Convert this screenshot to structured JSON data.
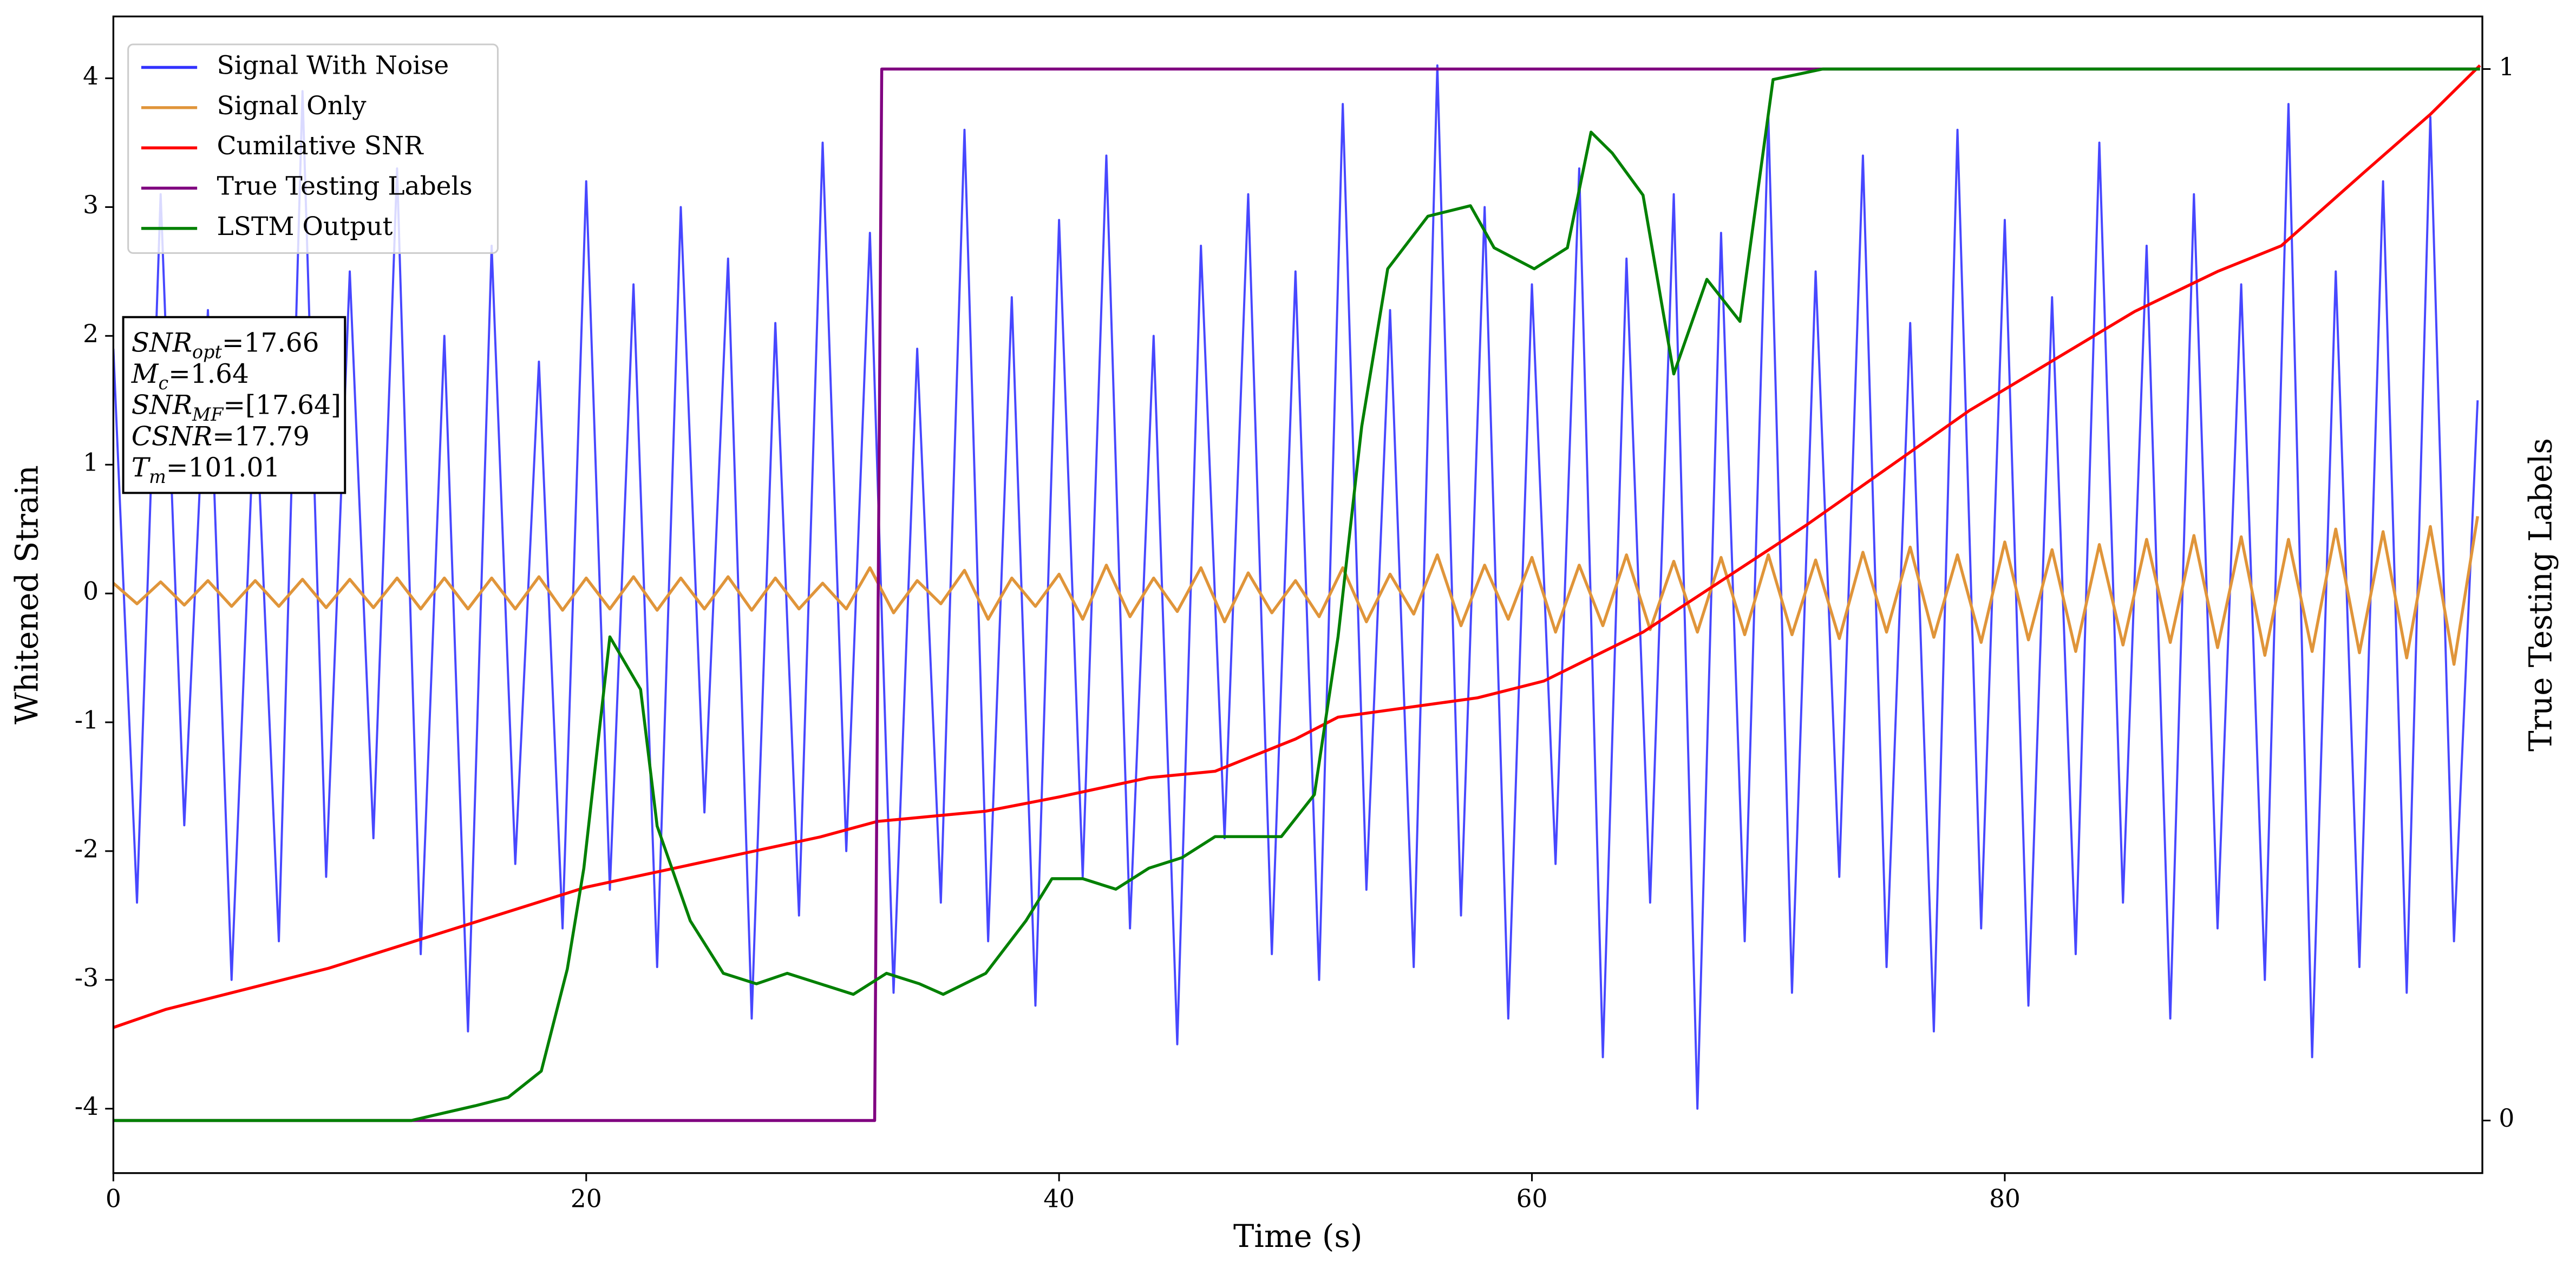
{
  "chart_data": {
    "type": "line",
    "xlabel": "Time (s)",
    "ylabel": "Whitened Strain",
    "y2label": "True Testing Labels",
    "xlim": [
      0,
      100.2
    ],
    "xticks": [
      0,
      20,
      40,
      60,
      80
    ],
    "ylim": [
      -4.5,
      4.48
    ],
    "yticks": [
      -4,
      -3,
      -2,
      -1,
      0,
      1,
      2,
      3,
      4
    ],
    "y2lim": [
      -0.05,
      1.05
    ],
    "y2ticks": [
      0,
      1
    ],
    "legend": "upper left",
    "series": [
      {
        "name": "Signal With Noise",
        "color": "#3333ff",
        "x": [
          0,
          1,
          2,
          3,
          4,
          5,
          6,
          7,
          8,
          9,
          10,
          11,
          12,
          13,
          14,
          15,
          16,
          17,
          18,
          19,
          20,
          21,
          22,
          23,
          24,
          25,
          26,
          27,
          28,
          29,
          30,
          31,
          32,
          33,
          34,
          35,
          36,
          37,
          38,
          39,
          40,
          41,
          42,
          43,
          44,
          45,
          46,
          47,
          48,
          49,
          50,
          51,
          52,
          53,
          54,
          55,
          56,
          57,
          58,
          59,
          60,
          61,
          62,
          63,
          64,
          65,
          66,
          67,
          68,
          69,
          70,
          71,
          72,
          73,
          74,
          75,
          76,
          77,
          78,
          79,
          80,
          81,
          82,
          83,
          84,
          85,
          86,
          87,
          88,
          89,
          90,
          91,
          92,
          93,
          94,
          95,
          96,
          97,
          98,
          99,
          100
        ],
        "values": [
          1.9,
          -2.4,
          3.1,
          -1.8,
          2.2,
          -3.0,
          1.6,
          -2.7,
          3.9,
          -2.2,
          2.5,
          -1.9,
          3.3,
          -2.8,
          2.0,
          -3.4,
          2.7,
          -2.1,
          1.8,
          -2.6,
          3.2,
          -2.3,
          2.4,
          -2.9,
          3.0,
          -1.7,
          2.6,
          -3.3,
          2.1,
          -2.5,
          3.5,
          -2.0,
          2.8,
          -3.1,
          1.9,
          -2.4,
          3.6,
          -2.7,
          2.3,
          -3.2,
          2.9,
          -2.2,
          3.4,
          -2.6,
          2.0,
          -3.5,
          2.7,
          -1.9,
          3.1,
          -2.8,
          2.5,
          -3.0,
          3.8,
          -2.3,
          2.2,
          -2.9,
          4.1,
          -2.5,
          3.0,
          -3.3,
          2.4,
          -2.1,
          3.3,
          -3.6,
          2.6,
          -2.4,
          3.1,
          -4.0,
          2.8,
          -2.7,
          3.7,
          -3.1,
          2.5,
          -2.2,
          3.4,
          -2.9,
          2.1,
          -3.4,
          3.6,
          -2.6,
          2.9,
          -3.2,
          2.3,
          -2.8,
          3.5,
          -2.4,
          2.7,
          -3.3,
          3.1,
          -2.6,
          2.4,
          -3.0,
          3.8,
          -3.6,
          2.5,
          -2.9,
          3.2,
          -3.1,
          3.7,
          -2.7,
          1.5
        ]
      },
      {
        "name": "Signal Only",
        "color": "#e0953a",
        "x": [
          0,
          1,
          2,
          3,
          4,
          5,
          6,
          7,
          8,
          9,
          10,
          11,
          12,
          13,
          14,
          15,
          16,
          17,
          18,
          19,
          20,
          21,
          22,
          23,
          24,
          25,
          26,
          27,
          28,
          29,
          30,
          31,
          32,
          33,
          34,
          35,
          36,
          37,
          38,
          39,
          40,
          41,
          42,
          43,
          44,
          45,
          46,
          47,
          48,
          49,
          50,
          51,
          52,
          53,
          54,
          55,
          56,
          57,
          58,
          59,
          60,
          61,
          62,
          63,
          64,
          65,
          66,
          67,
          68,
          69,
          70,
          71,
          72,
          73,
          74,
          75,
          76,
          77,
          78,
          79,
          80,
          81,
          82,
          83,
          84,
          85,
          86,
          87,
          88,
          89,
          90,
          91,
          92,
          93,
          94,
          95,
          96,
          97,
          98,
          99,
          100
        ],
        "values": [
          0.08,
          -0.08,
          0.09,
          -0.09,
          0.1,
          -0.1,
          0.1,
          -0.1,
          0.11,
          -0.11,
          0.11,
          -0.11,
          0.12,
          -0.12,
          0.12,
          -0.12,
          0.12,
          -0.12,
          0.13,
          -0.13,
          0.12,
          -0.12,
          0.13,
          -0.13,
          0.12,
          -0.12,
          0.13,
          -0.13,
          0.12,
          -0.12,
          0.08,
          -0.12,
          0.2,
          -0.15,
          0.1,
          -0.08,
          0.18,
          -0.2,
          0.12,
          -0.1,
          0.15,
          -0.2,
          0.22,
          -0.18,
          0.12,
          -0.14,
          0.2,
          -0.22,
          0.16,
          -0.15,
          0.1,
          -0.18,
          0.2,
          -0.22,
          0.15,
          -0.16,
          0.3,
          -0.25,
          0.22,
          -0.2,
          0.28,
          -0.3,
          0.22,
          -0.25,
          0.3,
          -0.28,
          0.25,
          -0.3,
          0.28,
          -0.32,
          0.3,
          -0.32,
          0.26,
          -0.35,
          0.32,
          -0.3,
          0.36,
          -0.34,
          0.3,
          -0.38,
          0.4,
          -0.36,
          0.34,
          -0.45,
          0.38,
          -0.4,
          0.42,
          -0.38,
          0.45,
          -0.42,
          0.44,
          -0.48,
          0.42,
          -0.45,
          0.5,
          -0.46,
          0.48,
          -0.5,
          0.52,
          -0.55,
          0.6
        ]
      },
      {
        "name": "Cumilative SNR",
        "color": "#ff0000",
        "x": [
          0,
          2.2,
          9.1,
          20,
          29.9,
          32.3,
          36.9,
          40,
          43.8,
          46.6,
          50,
          51.8,
          57.7,
          60.5,
          64.7,
          71.6,
          78.5,
          85.5,
          89,
          91.7,
          95.2,
          98,
          100.1
        ],
        "values": [
          -3.37,
          -3.23,
          -2.91,
          -2.28,
          -1.89,
          -1.77,
          -1.69,
          -1.58,
          -1.43,
          -1.38,
          -1.13,
          -0.96,
          -0.81,
          -0.68,
          -0.3,
          0.53,
          1.42,
          2.19,
          2.5,
          2.7,
          3.27,
          3.72,
          4.1
        ]
      },
      {
        "name": "True Testing Labels",
        "color": "#800080",
        "axis": "y2",
        "x": [
          0,
          32.2,
          32.5,
          100.1
        ],
        "values": [
          0,
          0,
          1,
          1
        ]
      },
      {
        "name": "LSTM Output",
        "color": "#008000",
        "axis": "y2",
        "x": [
          0,
          12.6,
          15.3,
          16.7,
          18.1,
          19.2,
          19.9,
          21,
          22.3,
          23,
          24.4,
          25.8,
          27.2,
          28.5,
          29.9,
          31.3,
          32.7,
          34.1,
          35.1,
          36.9,
          38.6,
          39.7,
          41,
          42.4,
          43.8,
          45.2,
          46.6,
          48,
          49.4,
          50.8,
          51.8,
          52.8,
          53.9,
          55.6,
          57.4,
          58.4,
          60.1,
          61.5,
          62.5,
          63.4,
          64.7,
          66,
          67.4,
          68.8,
          70.2,
          72.3,
          100.1
        ],
        "values": [
          0,
          0,
          0.014,
          0.022,
          0.047,
          0.144,
          0.24,
          0.46,
          0.41,
          0.28,
          0.19,
          0.14,
          0.13,
          0.14,
          0.13,
          0.12,
          0.14,
          0.13,
          0.12,
          0.14,
          0.19,
          0.23,
          0.23,
          0.22,
          0.24,
          0.25,
          0.27,
          0.27,
          0.27,
          0.31,
          0.46,
          0.66,
          0.81,
          0.86,
          0.87,
          0.83,
          0.81,
          0.83,
          0.94,
          0.92,
          0.88,
          0.71,
          0.8,
          0.76,
          0.99,
          1,
          1
        ]
      }
    ],
    "annotations": [
      {
        "symbol": "SNR",
        "subscript": "opt",
        "text": "=17.66"
      },
      {
        "symbol": "M",
        "subscript": "c",
        "text": "=1.64"
      },
      {
        "symbol": "SNR",
        "subscript": "MF",
        "text": "=[17.64]"
      },
      {
        "symbol": "CSNR",
        "text": "=17.79"
      },
      {
        "symbol": "T",
        "subscript": "m",
        "text": "=101.01"
      }
    ]
  }
}
